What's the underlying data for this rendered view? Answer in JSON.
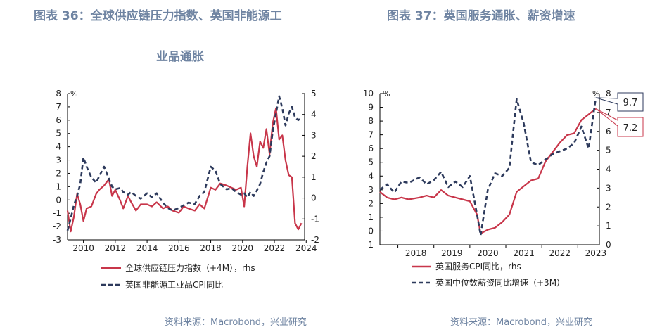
{
  "left": {
    "title_line1": "图表 36：全球供应链压力指数、英国非能源工",
    "title_line2": "业品通胀",
    "source": "资料来源：Macrobond，兴业研究"
  },
  "right": {
    "title": "图表 37：英国服务通胀、薪资增速",
    "source": "资料来源：Macrobond，兴业研究"
  },
  "chart_data": [
    {
      "type": "line",
      "x_type": "year",
      "x_ticks": [
        "2010",
        "2012",
        "2014",
        "2016",
        "2018",
        "2020",
        "2022",
        "2024"
      ],
      "ylabel_left": "%",
      "ylim_left": [
        -3,
        8
      ],
      "yticks_left": [
        -3,
        -2,
        -1,
        0,
        1,
        2,
        3,
        4,
        5,
        6,
        7,
        8
      ],
      "ylim_right": [
        -2,
        5
      ],
      "yticks_right": [
        -2,
        -1,
        0,
        1,
        2,
        3,
        4,
        5
      ],
      "series": [
        {
          "name": "全球供应链压力指数（+4M），rhs",
          "axis": "right",
          "style": "solid",
          "color": "#c8364a",
          "x": [
            2009.0,
            2009.2,
            2009.4,
            2009.6,
            2009.8,
            2010.0,
            2010.2,
            2010.5,
            2010.8,
            2011.0,
            2011.3,
            2011.6,
            2011.8,
            2012.0,
            2012.3,
            2012.5,
            2012.8,
            2013.0,
            2013.3,
            2013.6,
            2014.0,
            2014.3,
            2014.6,
            2015.0,
            2015.3,
            2015.6,
            2016.0,
            2016.3,
            2016.6,
            2017.0,
            2017.3,
            2017.6,
            2018.0,
            2018.3,
            2018.6,
            2019.0,
            2019.3,
            2019.6,
            2019.9,
            2020.1,
            2020.3,
            2020.5,
            2020.7,
            2020.9,
            2021.1,
            2021.3,
            2021.5,
            2021.7,
            2021.9,
            2022.1,
            2022.3,
            2022.5,
            2022.7,
            2022.9,
            2023.1,
            2023.3,
            2023.5,
            2023.7
          ],
          "values": [
            -0.6,
            -1.6,
            -0.9,
            0.2,
            -0.3,
            -1.1,
            -0.5,
            -0.4,
            0.2,
            0.4,
            0.6,
            0.9,
            0.1,
            0.4,
            -0.1,
            -0.5,
            0.1,
            -0.2,
            -0.6,
            -0.3,
            -0.3,
            -0.4,
            -0.2,
            -0.5,
            -0.4,
            -0.6,
            -0.7,
            -0.4,
            -0.5,
            -0.6,
            -0.3,
            -0.5,
            0.5,
            0.4,
            0.7,
            0.6,
            0.5,
            0.4,
            0.5,
            -0.4,
            1.5,
            3.1,
            2.0,
            1.5,
            2.7,
            2.4,
            3.3,
            2.1,
            3.6,
            4.3,
            2.8,
            3.0,
            1.8,
            1.1,
            1.0,
            -1.2,
            -1.5,
            -1.2
          ]
        },
        {
          "name": "英国非能源工业品CPI同比",
          "axis": "left",
          "style": "dashed",
          "color": "#2d3a5c",
          "x": [
            2009.0,
            2009.2,
            2009.4,
            2009.6,
            2009.8,
            2010.0,
            2010.2,
            2010.5,
            2010.8,
            2011.0,
            2011.3,
            2011.6,
            2011.8,
            2012.0,
            2012.3,
            2012.5,
            2012.8,
            2013.0,
            2013.3,
            2013.6,
            2014.0,
            2014.3,
            2014.6,
            2015.0,
            2015.3,
            2015.6,
            2016.0,
            2016.3,
            2016.6,
            2017.0,
            2017.3,
            2017.6,
            2018.0,
            2018.3,
            2018.6,
            2019.0,
            2019.3,
            2019.6,
            2019.9,
            2020.1,
            2020.3,
            2020.5,
            2020.7,
            2020.9,
            2021.1,
            2021.3,
            2021.5,
            2021.7,
            2021.9,
            2022.1,
            2022.3,
            2022.5,
            2022.7,
            2022.9,
            2023.1,
            2023.3,
            2023.5,
            2023.7
          ],
          "values": [
            -2.3,
            -1.4,
            -0.4,
            0.3,
            1.2,
            3.2,
            2.5,
            1.7,
            1.3,
            1.8,
            2.5,
            1.6,
            1.0,
            0.8,
            0.9,
            0.6,
            0.4,
            0.6,
            0.3,
            0.1,
            0.5,
            0.2,
            0.5,
            -0.2,
            -0.6,
            -0.8,
            -0.6,
            -0.4,
            -0.2,
            -0.3,
            0.3,
            0.6,
            2.5,
            2.2,
            1.2,
            0.8,
            0.9,
            0.6,
            0.4,
            0.5,
            0.2,
            0.6,
            0.3,
            0.7,
            1.2,
            2.1,
            2.8,
            3.3,
            5.2,
            6.5,
            7.8,
            6.9,
            5.6,
            6.5,
            7.0,
            6.2,
            6.0,
            6.2
          ]
        }
      ]
    },
    {
      "type": "line",
      "x_type": "year",
      "x_ticks": [
        "2018",
        "2019",
        "2020",
        "2021",
        "2022",
        "2023"
      ],
      "ylabel_left": "%",
      "ylabel_right": "%",
      "ylim_left": [
        -1,
        10
      ],
      "yticks_left": [
        -1,
        0,
        1,
        2,
        3,
        4,
        5,
        6,
        7,
        8,
        9,
        10
      ],
      "ylim_right": [
        0,
        8
      ],
      "yticks_right": [
        0,
        1,
        2,
        3,
        4,
        5,
        6,
        7,
        8
      ],
      "annotations": [
        {
          "text": "9.7",
          "series": 1
        },
        {
          "text": "7.2",
          "series": 0
        }
      ],
      "series": [
        {
          "name": "英国服务CPI同比，rhs",
          "axis": "right",
          "style": "solid",
          "color": "#c8364a",
          "x": [
            2017.5,
            2017.7,
            2017.9,
            2018.1,
            2018.3,
            2018.6,
            2018.8,
            2019.0,
            2019.2,
            2019.4,
            2019.6,
            2019.8,
            2020.0,
            2020.2,
            2020.3,
            2020.5,
            2020.7,
            2020.9,
            2021.1,
            2021.3,
            2021.5,
            2021.7,
            2021.9,
            2022.1,
            2022.3,
            2022.5,
            2022.7,
            2022.9,
            2023.1,
            2023.3,
            2023.5
          ],
          "values": [
            2.8,
            2.5,
            2.4,
            2.5,
            2.4,
            2.5,
            2.6,
            2.5,
            2.9,
            2.6,
            2.5,
            2.4,
            2.3,
            1.6,
            0.6,
            0.8,
            0.9,
            1.2,
            1.6,
            2.8,
            3.1,
            3.4,
            3.5,
            4.4,
            4.9,
            5.4,
            5.8,
            5.9,
            6.6,
            6.9,
            7.2
          ]
        },
        {
          "name": "英国中位数薪资同比增速（+3M）",
          "axis": "left",
          "style": "dashed",
          "color": "#2d3a5c",
          "x": [
            2017.5,
            2017.7,
            2017.9,
            2018.1,
            2018.3,
            2018.6,
            2018.8,
            2019.0,
            2019.2,
            2019.4,
            2019.6,
            2019.8,
            2020.0,
            2020.2,
            2020.3,
            2020.5,
            2020.7,
            2020.9,
            2021.1,
            2021.3,
            2021.5,
            2021.7,
            2021.9,
            2022.1,
            2022.3,
            2022.5,
            2022.7,
            2022.9,
            2023.1,
            2023.3,
            2023.5
          ],
          "values": [
            3.0,
            3.4,
            2.8,
            3.6,
            3.5,
            3.9,
            3.4,
            3.7,
            4.3,
            3.2,
            3.6,
            3.2,
            4.0,
            1.2,
            -0.3,
            3.0,
            4.2,
            4.0,
            4.6,
            9.6,
            7.8,
            5.0,
            4.8,
            5.2,
            5.6,
            5.8,
            6.0,
            6.4,
            7.6,
            6.0,
            9.7
          ]
        }
      ]
    }
  ]
}
